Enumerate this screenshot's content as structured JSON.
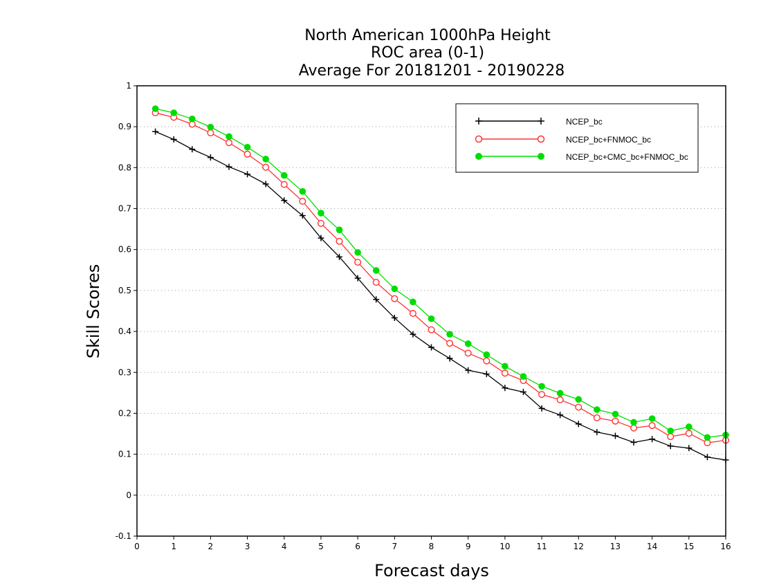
{
  "chart_data": {
    "type": "line",
    "title_lines": [
      "North American 1000hPa Height",
      "ROC area (0-1)",
      "Average For 20181201 - 20190228"
    ],
    "xlabel": "Forecast days",
    "ylabel": "Skill Scores",
    "xlim": [
      0,
      16
    ],
    "ylim": [
      -0.1,
      1
    ],
    "xticks": [
      0,
      1,
      2,
      3,
      4,
      5,
      6,
      7,
      8,
      9,
      10,
      11,
      12,
      13,
      14,
      15,
      16
    ],
    "yticks": [
      -0.1,
      0,
      0.1,
      0.2,
      0.3,
      0.4,
      0.5,
      0.6,
      0.7,
      0.8,
      0.9,
      1
    ],
    "ytick_labels": [
      "-0.1",
      "0",
      "0.1",
      "0.2",
      "0.3",
      "0.4",
      "0.5",
      "0.6",
      "0.7",
      "0.8",
      "0.9",
      "1"
    ],
    "grid": true,
    "legend_position": "top-right",
    "x": [
      0.5,
      1,
      1.5,
      2,
      2.5,
      3,
      3.5,
      4,
      4.5,
      5,
      5.5,
      6,
      6.5,
      7,
      7.5,
      8,
      8.5,
      9,
      9.5,
      10,
      10.5,
      11,
      11.5,
      12,
      12.5,
      13,
      13.5,
      14,
      14.5,
      15,
      15.5,
      16
    ],
    "series": [
      {
        "name": "NCEP_bc",
        "color": "#000000",
        "marker": "plus",
        "values": [
          0.888,
          0.869,
          0.845,
          0.825,
          0.802,
          0.784,
          0.76,
          0.72,
          0.683,
          0.628,
          0.582,
          0.53,
          0.478,
          0.433,
          0.393,
          0.361,
          0.334,
          0.305,
          0.296,
          0.262,
          0.252,
          0.212,
          0.196,
          0.174,
          0.154,
          0.145,
          0.129,
          0.137,
          0.12,
          0.115,
          0.093,
          0.086
        ]
      },
      {
        "name": "NCEP_bc+FNMOC_bc",
        "color": "#ff3333",
        "marker": "open-circle",
        "values": [
          0.934,
          0.923,
          0.906,
          0.885,
          0.861,
          0.833,
          0.801,
          0.759,
          0.718,
          0.664,
          0.62,
          0.569,
          0.52,
          0.48,
          0.444,
          0.404,
          0.371,
          0.347,
          0.328,
          0.298,
          0.28,
          0.246,
          0.233,
          0.215,
          0.189,
          0.181,
          0.164,
          0.17,
          0.143,
          0.151,
          0.128,
          0.134
        ]
      },
      {
        "name": "NCEP_bc+CMC_bc+FNMOC_bc",
        "color": "#00dd00",
        "marker": "filled-circle",
        "values": [
          0.944,
          0.934,
          0.919,
          0.899,
          0.876,
          0.85,
          0.821,
          0.781,
          0.742,
          0.689,
          0.648,
          0.593,
          0.549,
          0.504,
          0.472,
          0.431,
          0.393,
          0.37,
          0.343,
          0.315,
          0.29,
          0.266,
          0.249,
          0.234,
          0.209,
          0.198,
          0.178,
          0.187,
          0.157,
          0.167,
          0.141,
          0.147
        ]
      }
    ]
  }
}
